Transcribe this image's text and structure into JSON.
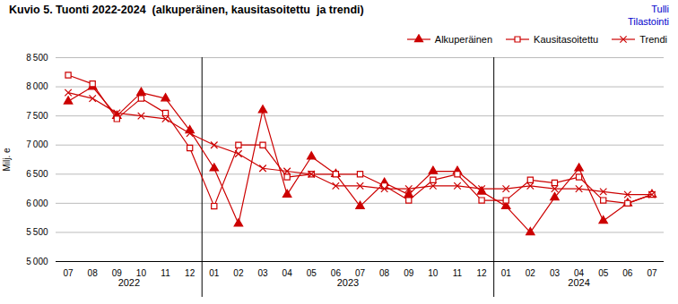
{
  "chart_data": {
    "type": "line",
    "title": "Kuvio 5. Tuonti 2022-2024  (alkuperäinen, kausitasoitettu  ja trendi)",
    "source": {
      "text": "Tulli\nTilastointi",
      "color": "#0000cc"
    },
    "ylabel": "Milj. e",
    "categories": [
      "07",
      "08",
      "09",
      "10",
      "11",
      "12",
      "01",
      "02",
      "03",
      "04",
      "05",
      "06",
      "07",
      "08",
      "09",
      "10",
      "11",
      "12",
      "01",
      "02",
      "03",
      "04",
      "05",
      "06",
      "07"
    ],
    "series": [
      {
        "name": "Alkuperäinen",
        "color": "#cc0000",
        "marker": "triangle",
        "values": [
          7750,
          8000,
          7500,
          7900,
          7800,
          7250,
          6600,
          5650,
          7600,
          6150,
          6800,
          6500,
          5950,
          6350,
          6150,
          6550,
          6550,
          6200,
          5950,
          5500,
          6100,
          6600,
          5700,
          6000,
          6150
        ]
      },
      {
        "name": "Kausitasoitettu",
        "color": "#cc0000",
        "marker": "open-square",
        "values": [
          8200,
          8050,
          7450,
          7800,
          7550,
          6950,
          5950,
          7000,
          7000,
          6450,
          6500,
          6500,
          6500,
          6300,
          6050,
          6400,
          6500,
          6050,
          6050,
          6400,
          6350,
          6450,
          6050,
          6000,
          6150
        ]
      },
      {
        "name": "Trendi",
        "color": "#cc0000",
        "marker": "x",
        "values": [
          7900,
          7800,
          7550,
          7500,
          7450,
          7200,
          7000,
          6850,
          6600,
          6550,
          6500,
          6300,
          6300,
          6250,
          6250,
          6300,
          6300,
          6250,
          6250,
          6300,
          6250,
          6250,
          6200,
          6150,
          6150
        ]
      }
    ],
    "ylim": [
      5000,
      8500
    ],
    "yticks": [
      {
        "value": 5000,
        "label": "5 000"
      },
      {
        "value": 5500,
        "label": "5 500"
      },
      {
        "value": 6000,
        "label": "6 000"
      },
      {
        "value": 6500,
        "label": "6 500"
      },
      {
        "value": 7000,
        "label": "7 000"
      },
      {
        "value": 7500,
        "label": "7 500"
      },
      {
        "value": 8000,
        "label": "8 000"
      },
      {
        "value": 8500,
        "label": "8 500"
      }
    ],
    "grid": true,
    "legend": "top right",
    "annotations": [
      {
        "text": "2022",
        "x": 2.5
      },
      {
        "text": "2023",
        "x": 11.5
      },
      {
        "text": "2024",
        "x": 21.0
      }
    ],
    "dividers": [
      5.5,
      17.5
    ]
  }
}
